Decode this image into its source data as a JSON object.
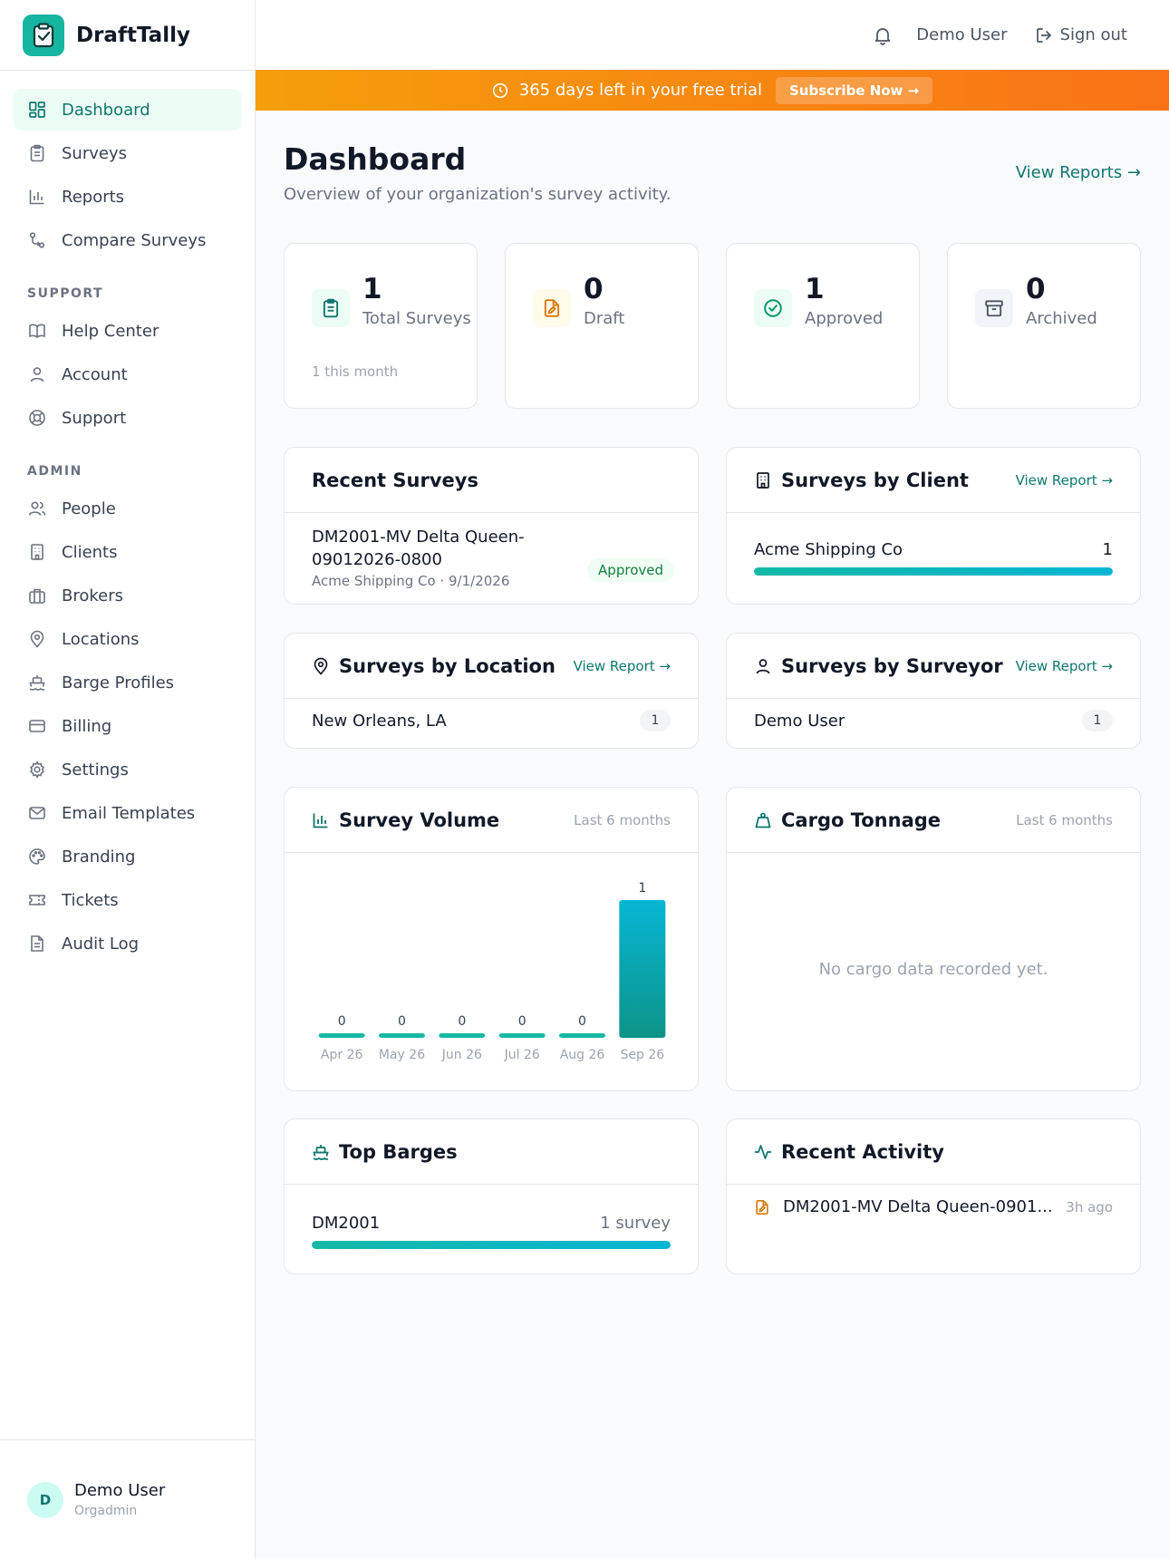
{
  "brand": {
    "name": "DraftTally"
  },
  "sidebar": {
    "items": [
      {
        "label": "Dashboard",
        "icon": "dashboard-icon",
        "active": true
      },
      {
        "label": "Surveys",
        "icon": "clipboard-icon"
      },
      {
        "label": "Reports",
        "icon": "bar-chart-icon"
      },
      {
        "label": "Compare Surveys",
        "icon": "compare-icon"
      }
    ],
    "support_label": "SUPPORT",
    "support_items": [
      {
        "label": "Help Center",
        "icon": "book-icon"
      },
      {
        "label": "Account",
        "icon": "user-icon"
      },
      {
        "label": "Support",
        "icon": "lifebuoy-icon"
      }
    ],
    "admin_label": "ADMIN",
    "admin_items": [
      {
        "label": "People",
        "icon": "users-icon"
      },
      {
        "label": "Clients",
        "icon": "building-icon"
      },
      {
        "label": "Brokers",
        "icon": "briefcase-icon"
      },
      {
        "label": "Locations",
        "icon": "map-pin-icon"
      },
      {
        "label": "Barge Profiles",
        "icon": "ship-icon"
      },
      {
        "label": "Billing",
        "icon": "credit-card-icon"
      },
      {
        "label": "Settings",
        "icon": "gear-icon"
      },
      {
        "label": "Email Templates",
        "icon": "mail-icon"
      },
      {
        "label": "Branding",
        "icon": "palette-icon"
      },
      {
        "label": "Tickets",
        "icon": "ticket-icon"
      },
      {
        "label": "Audit Log",
        "icon": "file-text-icon"
      }
    ],
    "user": {
      "initial": "D",
      "name": "Demo User",
      "role": "Orgadmin"
    }
  },
  "topbar": {
    "user": "Demo User",
    "sign_out": "Sign out"
  },
  "banner": {
    "text": "365 days left in your free trial",
    "button": "Subscribe Now →"
  },
  "page": {
    "title": "Dashboard",
    "subtitle": "Overview of your organization's survey activity.",
    "view_reports": "View Reports →"
  },
  "stats": [
    {
      "value": "1",
      "label": "Total Surveys",
      "sub": "1 this month",
      "color": "#0f766e",
      "bg": "#ecfdf5"
    },
    {
      "value": "0",
      "label": "Draft",
      "sub": "",
      "color": "#d97706",
      "bg": "#fffbeb"
    },
    {
      "value": "1",
      "label": "Approved",
      "sub": "",
      "color": "#059669",
      "bg": "#ecfdf5"
    },
    {
      "value": "0",
      "label": "Archived",
      "sub": "",
      "color": "#4b5563",
      "bg": "#f3f4f6"
    }
  ],
  "recent_surveys": {
    "title": "Recent Surveys",
    "items": [
      {
        "name": "DM2001-MV Delta Queen-09012026-0800",
        "meta": "Acme Shipping Co · 9/1/2026",
        "status": "Approved"
      }
    ]
  },
  "by_client": {
    "title": "Surveys by Client",
    "link": "View Report →",
    "rows": [
      {
        "label": "Acme Shipping Co",
        "value": "1",
        "fraction": 1.0
      }
    ]
  },
  "by_location": {
    "title": "Surveys by Location",
    "link": "View Report →",
    "rows": [
      {
        "label": "New Orleans, LA",
        "count": "1"
      }
    ]
  },
  "by_surveyor": {
    "title": "Surveys by Surveyor",
    "link": "View Report →",
    "rows": [
      {
        "label": "Demo User",
        "count": "1"
      }
    ]
  },
  "survey_volume": {
    "title": "Survey Volume",
    "meta": "Last 6 months"
  },
  "chart_data": {
    "type": "bar",
    "categories": [
      "Apr 26",
      "May 26",
      "Jun 26",
      "Jul 26",
      "Aug 26",
      "Sep 26"
    ],
    "values": [
      0,
      0,
      0,
      0,
      0,
      1
    ],
    "ylim": [
      0,
      1
    ],
    "grid": false
  },
  "cargo": {
    "title": "Cargo Tonnage",
    "meta": "Last 6 months",
    "empty": "No cargo data recorded yet."
  },
  "top_barges": {
    "title": "Top Barges",
    "rows": [
      {
        "label": "DM2001",
        "value": "1 survey",
        "fraction": 1.0
      }
    ]
  },
  "recent_activity": {
    "title": "Recent Activity",
    "items": [
      {
        "text": "DM2001-MV Delta Queen-0901...",
        "time": "3h ago"
      }
    ]
  },
  "colors": {
    "accent": "#0f766e",
    "brand": "#16b5a0",
    "bar": "#14b8a6",
    "banner": "#f97316"
  }
}
